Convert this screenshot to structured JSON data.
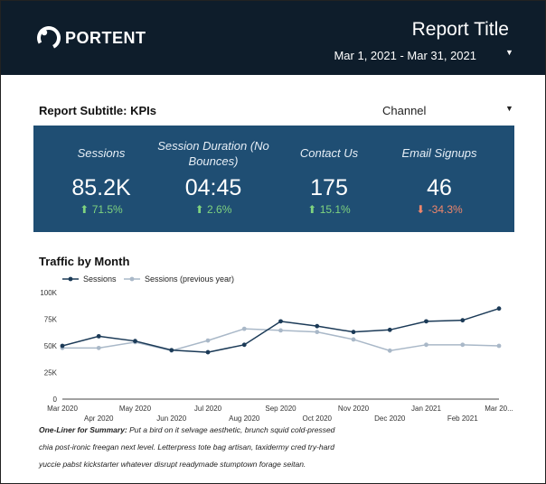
{
  "header": {
    "logo_text": "PORTENT",
    "report_title": "Report Title",
    "date_range": "Mar 1, 2021 - Mar 31, 2021",
    "caret_icon": "caret-down-icon"
  },
  "subheader": {
    "subtitle": "Report Subtitle: KPIs",
    "channel_label": "Channel"
  },
  "kpis": [
    {
      "label": "Sessions",
      "value": "85.2K",
      "change": "71.5%",
      "direction": "up"
    },
    {
      "label": "Session Duration (No Bounces)",
      "value": "04:45",
      "change": "2.6%",
      "direction": "up"
    },
    {
      "label": "Contact Us",
      "value": "175",
      "change": "15.1%",
      "direction": "up"
    },
    {
      "label": "Email Signups",
      "value": "46",
      "change": "-34.3%",
      "direction": "down"
    }
  ],
  "colors": {
    "header_bg": "#0e1d2b",
    "kpi_bg": "#1f4e73",
    "positive": "#7fd37f",
    "negative": "#f0866b",
    "series_current": "#1b3a57",
    "series_previous": "#a9b8c8"
  },
  "traffic_section": {
    "title": "Traffic by Month"
  },
  "chart_data": {
    "type": "line",
    "title": "Traffic by Month",
    "x": [
      "Mar 2020",
      "Apr 2020",
      "May 2020",
      "Jun 2020",
      "Jul 2020",
      "Aug 2020",
      "Sep 2020",
      "Oct 2020",
      "Nov 2020",
      "Dec 2020",
      "Jan 2021",
      "Feb 2021",
      "Mar 20..."
    ],
    "series": [
      {
        "name": "Sessions",
        "values": [
          50000,
          59000,
          54500,
          46000,
          44000,
          51000,
          73000,
          68500,
          63000,
          65000,
          73000,
          74000,
          85000
        ]
      },
      {
        "name": "Sessions (previous year)",
        "values": [
          48000,
          48000,
          53500,
          45500,
          55000,
          66000,
          64500,
          63000,
          56000,
          45500,
          51000,
          51000,
          50000
        ]
      }
    ],
    "y_ticks": [
      "0",
      "25K",
      "50K",
      "75K",
      "100K"
    ],
    "ylim": [
      0,
      100000
    ],
    "grid": false,
    "legend": "top-left"
  },
  "summary": {
    "lead": "One-Liner for Summary:",
    "text": " Put a bird on it selvage aesthetic, brunch squid cold-pressed chia post-ironic freegan next level. Letterpress tote bag artisan, taxidermy cred try-hard yuccie pabst kickstarter whatever disrupt readymade stumptown forage seitan."
  }
}
